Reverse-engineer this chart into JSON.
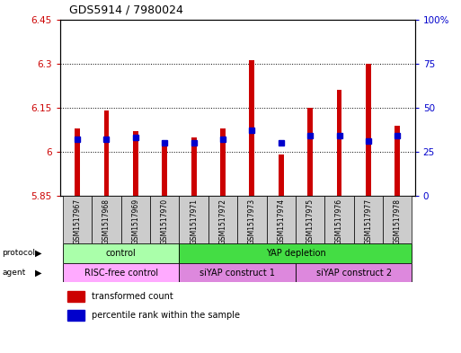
{
  "title": "GDS5914 / 7980024",
  "samples": [
    "GSM1517967",
    "GSM1517968",
    "GSM1517969",
    "GSM1517970",
    "GSM1517971",
    "GSM1517972",
    "GSM1517973",
    "GSM1517974",
    "GSM1517975",
    "GSM1517976",
    "GSM1517977",
    "GSM1517978"
  ],
  "red_values": [
    6.08,
    6.14,
    6.07,
    6.03,
    6.05,
    6.08,
    6.31,
    5.99,
    6.15,
    6.21,
    6.3,
    6.09
  ],
  "blue_pct_vals": [
    32,
    32,
    33,
    30,
    30,
    32,
    37,
    30,
    34,
    34,
    31,
    34
  ],
  "base_value": 5.85,
  "ylim_left": [
    5.85,
    6.45
  ],
  "ylim_right": [
    0,
    100
  ],
  "yticks_left": [
    5.85,
    6.0,
    6.15,
    6.3,
    6.45
  ],
  "yticks_right": [
    0,
    25,
    50,
    75,
    100
  ],
  "ytick_labels_left": [
    "5.85",
    "6",
    "6.15",
    "6.3",
    "6.45"
  ],
  "ytick_labels_right": [
    "0",
    "25",
    "50",
    "75",
    "100%"
  ],
  "bar_color": "#cc0000",
  "dot_color": "#0000cc",
  "proto_groups": [
    {
      "label": "control",
      "start": 0,
      "end": 4,
      "color": "#aaffaa"
    },
    {
      "label": "YAP depletion",
      "start": 4,
      "end": 12,
      "color": "#44dd44"
    }
  ],
  "agent_groups": [
    {
      "label": "RISC-free control",
      "start": 0,
      "end": 4,
      "color": "#ffaaff"
    },
    {
      "label": "siYAP construct 1",
      "start": 4,
      "end": 8,
      "color": "#dd88dd"
    },
    {
      "label": "siYAP construct 2",
      "start": 8,
      "end": 12,
      "color": "#dd88dd"
    }
  ],
  "legend_items": [
    {
      "label": "transformed count",
      "color": "#cc0000"
    },
    {
      "label": "percentile rank within the sample",
      "color": "#0000cc"
    }
  ],
  "grid_lines": [
    6.0,
    6.15,
    6.3
  ],
  "background_color": "#ffffff",
  "bar_width": 0.18,
  "sample_box_color": "#cccccc"
}
